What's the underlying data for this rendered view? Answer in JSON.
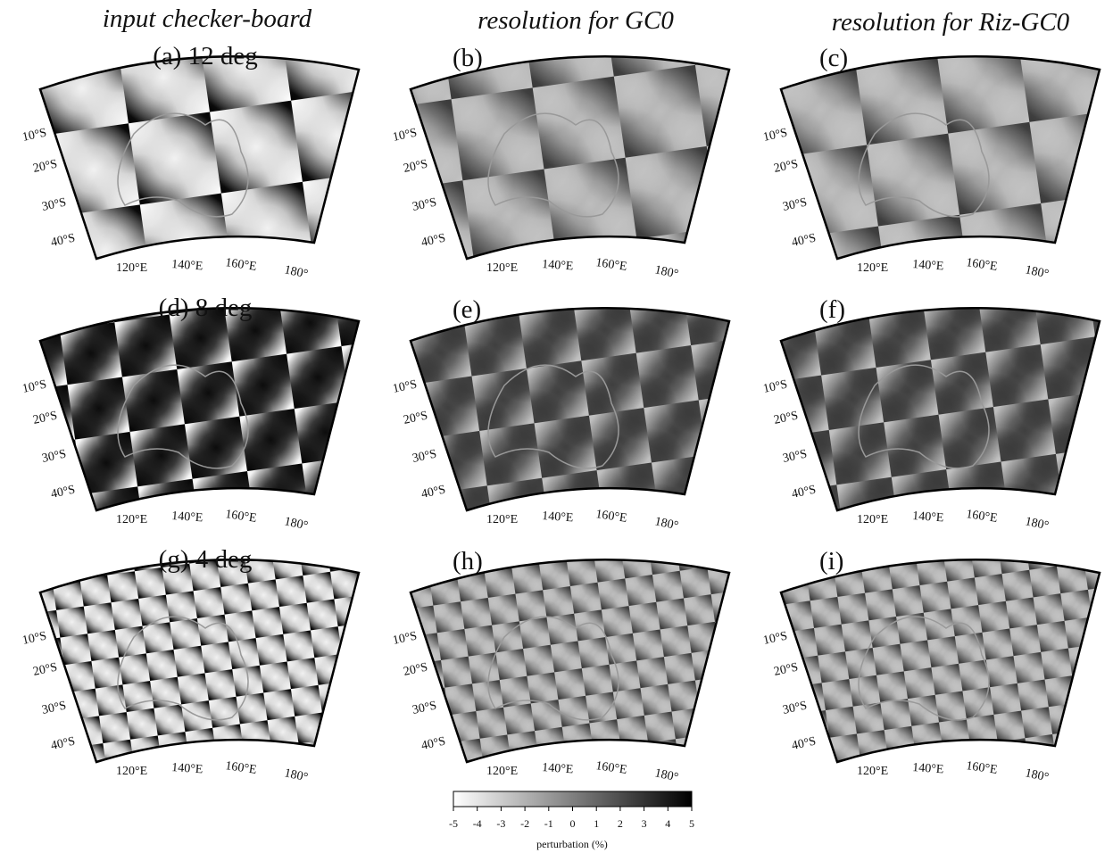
{
  "columns": [
    "input checker-board",
    "resolution for GC0",
    "resolution for Riz-GC0"
  ],
  "panels": [
    {
      "label": "(a) 12 deg"
    },
    {
      "label": "(b)"
    },
    {
      "label": "(c)"
    },
    {
      "label": "(d) 8 deg"
    },
    {
      "label": "(e)"
    },
    {
      "label": "(f)"
    },
    {
      "label": "(g) 4 deg"
    },
    {
      "label": "(h)"
    },
    {
      "label": "(i)"
    }
  ],
  "latitude_labels": [
    "10°S",
    "20°S",
    "30°S",
    "40°S"
  ],
  "longitude_labels": [
    "120°E",
    "140°E",
    "160°E",
    "180°"
  ],
  "colorbar": {
    "label": "perturbation (%)",
    "range": [
      -5,
      5
    ],
    "ticks": [
      -5,
      -4,
      -3,
      -2,
      -1,
      0,
      1,
      2,
      3,
      4,
      5
    ]
  }
}
